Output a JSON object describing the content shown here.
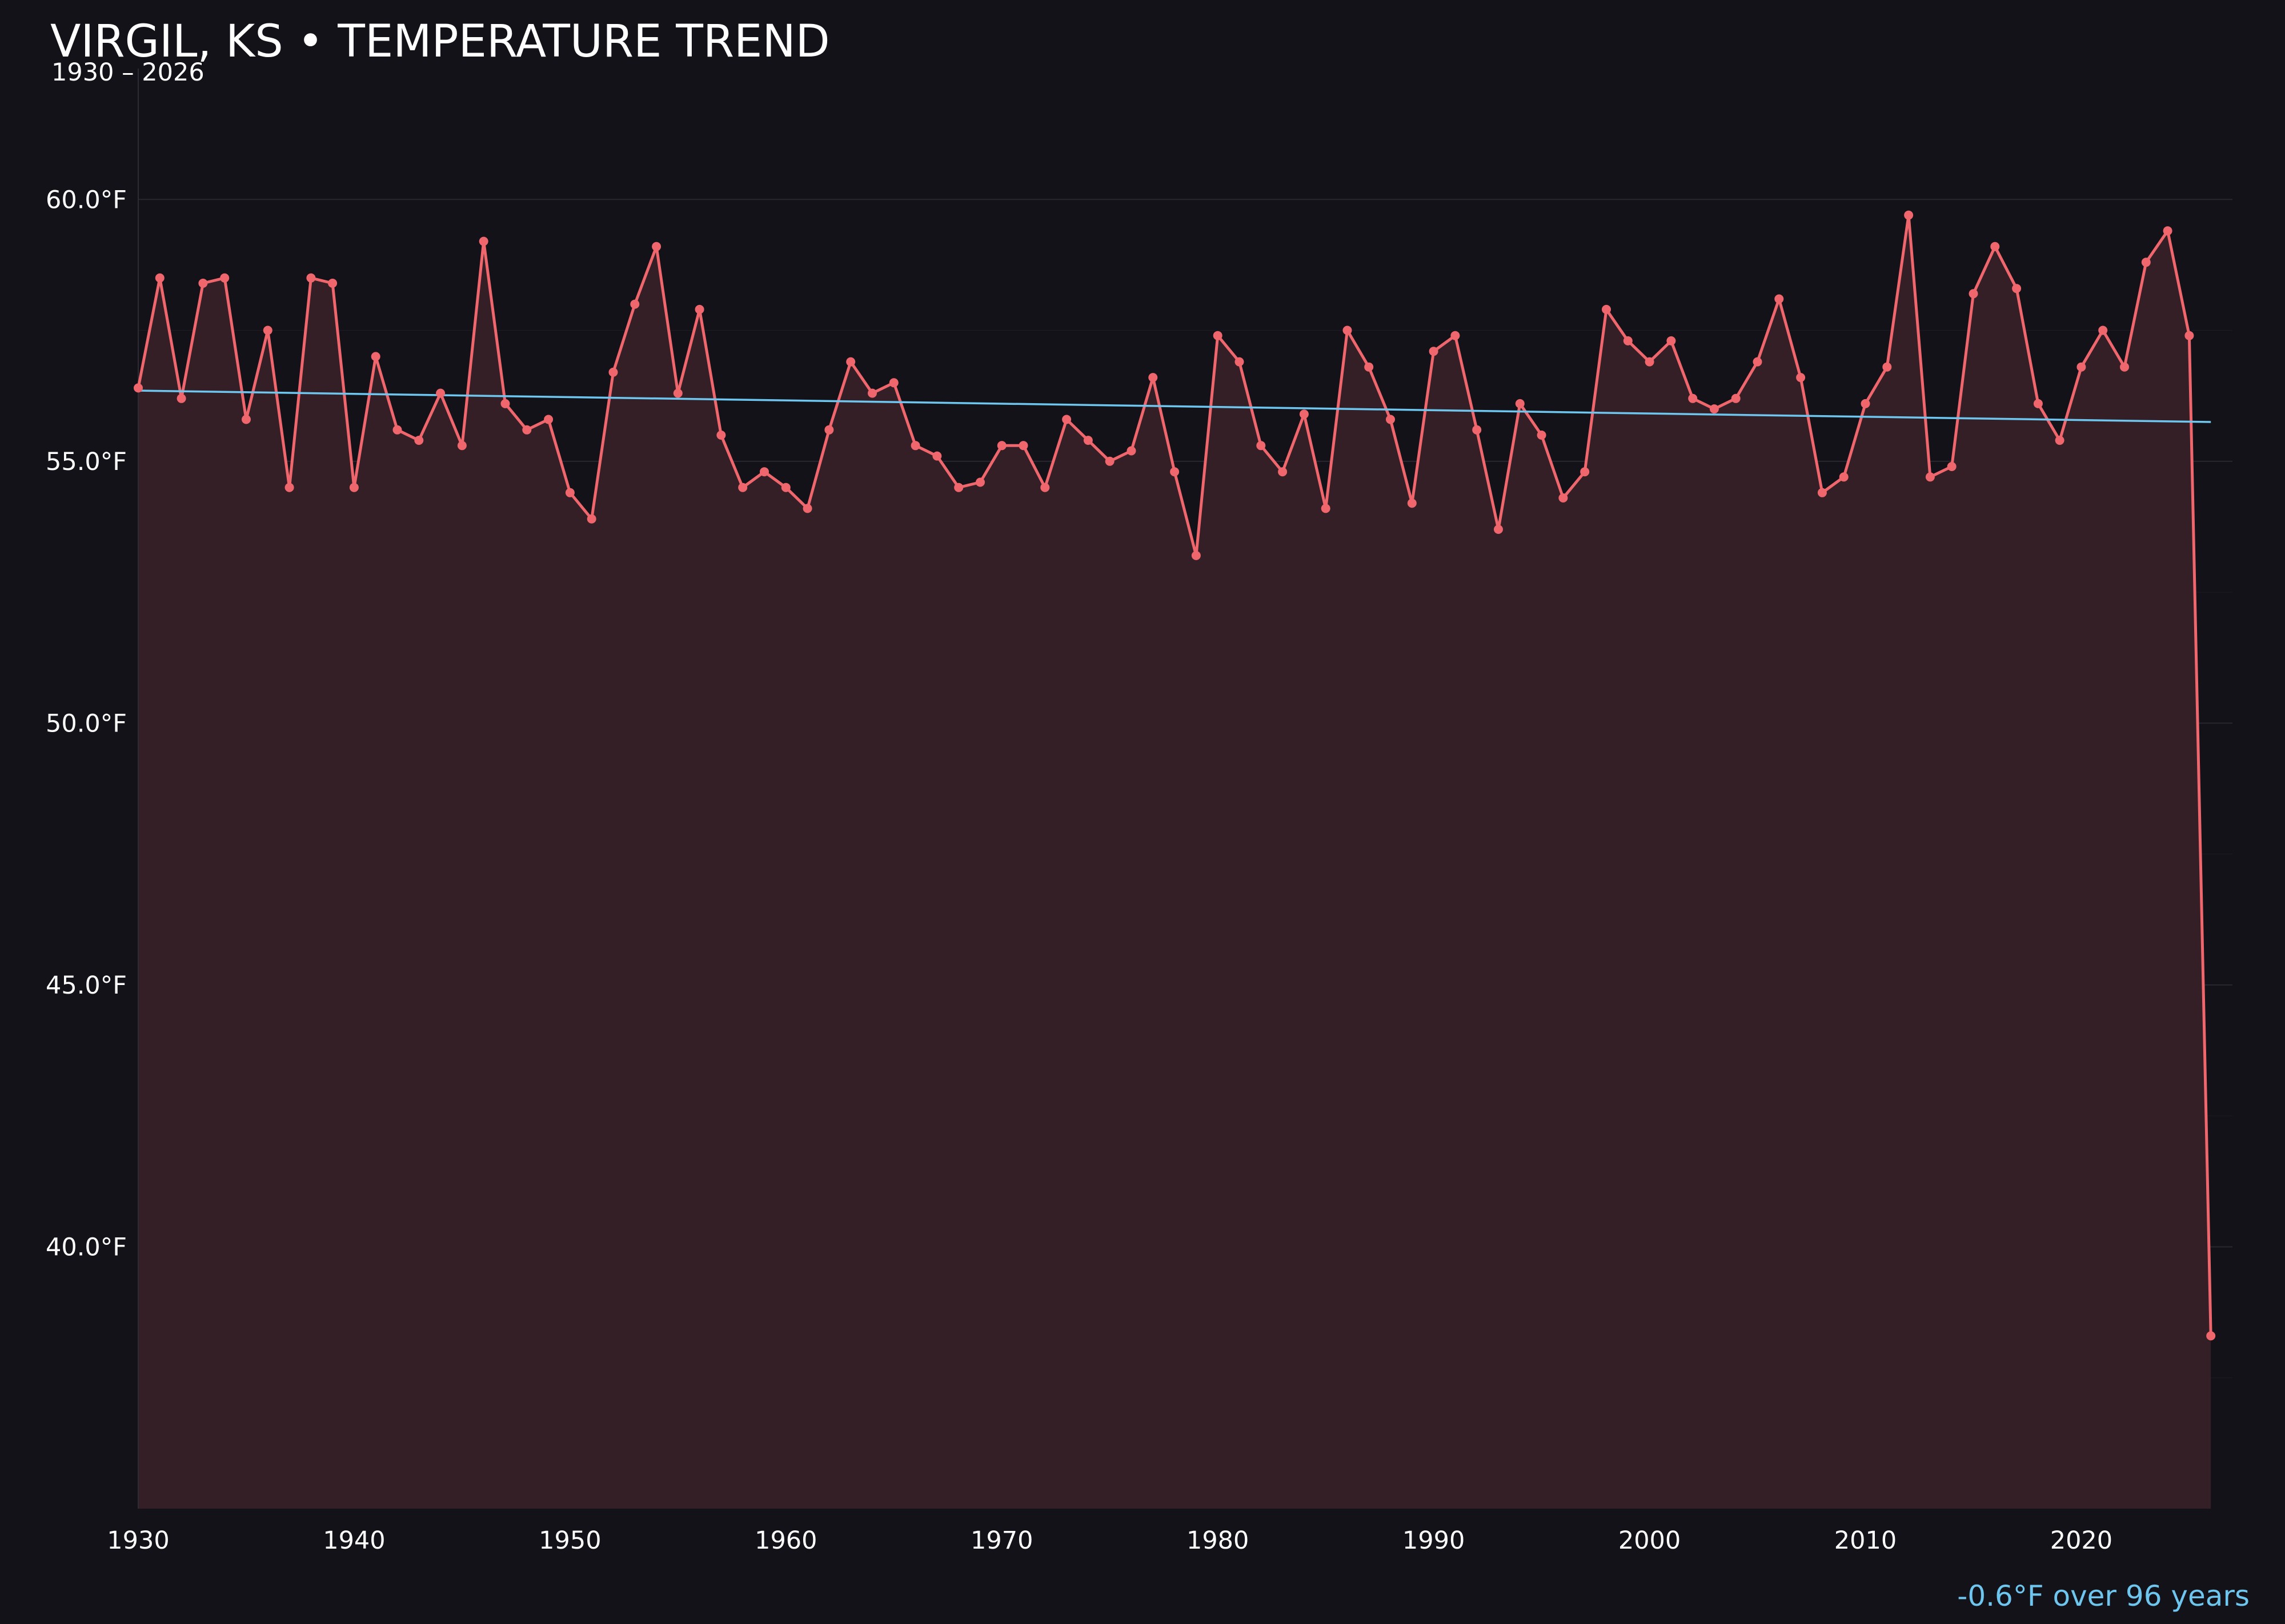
{
  "title": "VIRGIL, KS • TEMPERATURE TREND",
  "subtitle": "1930 – 2026",
  "trend_note": "-0.6°F over 96 years",
  "colors": {
    "background": "#131219",
    "series_line": "#f0666d",
    "area_fill": "#341f26",
    "trend_line": "#6ec6ef",
    "grid": "#2a2630",
    "text": "#ffffff"
  },
  "chart_data": {
    "type": "line",
    "title": "VIRGIL, KS • TEMPERATURE TREND",
    "subtitle": "1930 – 2026",
    "xlabel": "",
    "ylabel": "",
    "xlim": [
      1930,
      2027
    ],
    "ylim": [
      35,
      62.5
    ],
    "grid": true,
    "area_fill": true,
    "x_ticks": [
      1930,
      1940,
      1950,
      1960,
      1970,
      1980,
      1990,
      2000,
      2010,
      2020
    ],
    "x_tick_labels": [
      "1930",
      "1940",
      "1950",
      "1960",
      "1970",
      "1980",
      "1990",
      "2000",
      "2010",
      "2020"
    ],
    "y_ticks": [
      40,
      45,
      50,
      55,
      60
    ],
    "y_tick_labels": [
      "40.0°F",
      "45.0°F",
      "50.0°F",
      "55.0°F",
      "60.0°F"
    ],
    "series": [
      {
        "x": [
          1930,
          1931,
          1932,
          1933,
          1934,
          1935,
          1936,
          1937,
          1938,
          1939,
          1940,
          1941,
          1942,
          1943,
          1944,
          1945,
          1946,
          1947,
          1948,
          1949,
          1950,
          1951,
          1952,
          1953,
          1954,
          1955,
          1956,
          1957,
          1958,
          1959,
          1960,
          1961,
          1962,
          1963,
          1964,
          1965,
          1966,
          1967,
          1968,
          1969,
          1970,
          1971,
          1972,
          1973,
          1974,
          1975,
          1976,
          1977,
          1978,
          1979,
          1980,
          1981,
          1982,
          1983,
          1984,
          1985,
          1986,
          1987,
          1988,
          1989,
          1990,
          1991,
          1992,
          1993,
          1994,
          1995,
          1996,
          1997,
          1998,
          1999,
          2000,
          2001,
          2002,
          2003,
          2004,
          2005,
          2006,
          2007,
          2008,
          2009,
          2010,
          2011,
          2012,
          2013,
          2014,
          2015,
          2016,
          2017,
          2018,
          2019,
          2020,
          2021,
          2022,
          2023,
          2024,
          2025,
          2026
        ],
        "values": [
          56.4,
          58.5,
          56.2,
          58.4,
          58.5,
          55.8,
          57.5,
          54.5,
          58.5,
          58.4,
          54.5,
          57.0,
          55.6,
          55.4,
          56.3,
          55.3,
          59.2,
          56.1,
          55.6,
          55.8,
          54.4,
          53.9,
          56.7,
          58.0,
          59.1,
          56.3,
          57.9,
          55.5,
          54.5,
          54.8,
          54.5,
          54.1,
          55.6,
          56.9,
          56.3,
          56.5,
          55.3,
          55.1,
          54.5,
          54.6,
          55.3,
          55.3,
          54.5,
          55.8,
          55.4,
          55.0,
          55.2,
          56.6,
          54.8,
          53.2,
          57.4,
          56.9,
          55.3,
          54.8,
          55.9,
          54.1,
          57.5,
          56.8,
          55.8,
          54.2,
          57.1,
          57.4,
          55.6,
          53.7,
          56.1,
          55.5,
          54.3,
          54.8,
          57.9,
          57.3,
          56.9,
          57.3,
          56.2,
          56.0,
          56.2,
          56.9,
          58.1,
          56.6,
          54.4,
          54.7,
          56.1,
          56.8,
          59.7,
          54.7,
          54.9,
          58.2,
          59.1,
          58.3,
          56.1,
          55.4,
          56.8,
          57.5,
          56.8,
          58.8,
          59.4,
          57.4,
          38.3
        ]
      }
    ],
    "trend": {
      "x": [
        1930,
        2026
      ],
      "values": [
        56.35,
        55.75
      ]
    }
  }
}
